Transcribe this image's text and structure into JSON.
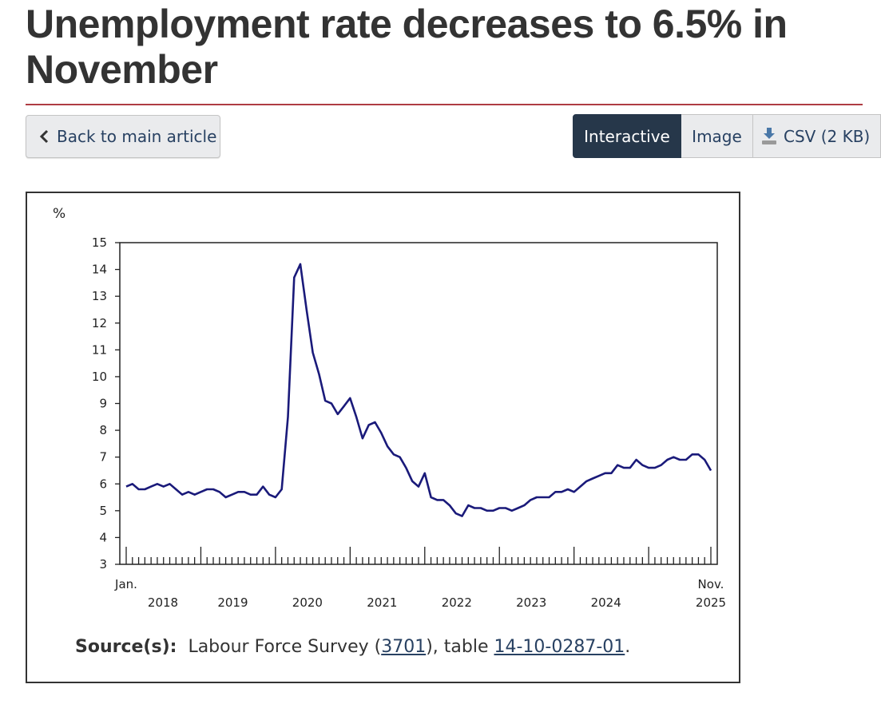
{
  "page": {
    "title": "Unemployment rate decreases to 6.5% in November"
  },
  "nav": {
    "back_label": "Back to main article",
    "view_tabs": [
      "Interactive",
      "Image",
      "CSV (2 KB)"
    ],
    "active_tab": "Interactive"
  },
  "colors": {
    "accent_rule": "#af3c43",
    "active_tab_bg": "#26374a",
    "line": "#1a1a7a",
    "link": "#284162"
  },
  "source": {
    "label": "Source(s):",
    "prefix": "Labour Force Survey (",
    "survey_link": "3701",
    "middle": "), table ",
    "table_link": "14-10-0287-01",
    "suffix": "."
  },
  "chart_data": {
    "type": "line",
    "unit_label": "%",
    "ylim": [
      3,
      15
    ],
    "y_ticks": [
      3,
      4,
      5,
      6,
      7,
      8,
      9,
      10,
      11,
      12,
      13,
      14,
      15
    ],
    "x_start": "2018-01",
    "x_end": "2025-11",
    "x_tick_labels": [
      {
        "month": "2018-01",
        "line1": "Jan.",
        "line2": "2018"
      },
      {
        "month": "2019-01",
        "line1": "",
        "line2": "2019"
      },
      {
        "month": "2020-01",
        "line1": "",
        "line2": "2020"
      },
      {
        "month": "2021-01",
        "line1": "",
        "line2": "2021"
      },
      {
        "month": "2022-01",
        "line1": "",
        "line2": "2022"
      },
      {
        "month": "2023-01",
        "line1": "",
        "line2": "2023"
      },
      {
        "month": "2024-01",
        "line1": "",
        "line2": "2024"
      },
      {
        "month": "2025-11",
        "line1": "Nov.",
        "line2": "2025"
      }
    ],
    "grid": false,
    "series": [
      {
        "values": [
          5.9,
          6.0,
          5.8,
          5.8,
          5.9,
          6.0,
          5.9,
          6.0,
          5.8,
          5.6,
          5.7,
          5.6,
          5.7,
          5.8,
          5.8,
          5.7,
          5.5,
          5.6,
          5.7,
          5.7,
          5.6,
          5.6,
          5.9,
          5.6,
          5.5,
          5.8,
          8.5,
          13.7,
          14.2,
          12.5,
          10.9,
          10.1,
          9.1,
          9.0,
          8.6,
          8.9,
          9.2,
          8.5,
          7.7,
          8.2,
          8.3,
          7.9,
          7.4,
          7.1,
          7.0,
          6.6,
          6.1,
          5.9,
          6.4,
          5.5,
          5.4,
          5.4,
          5.2,
          4.9,
          4.8,
          5.2,
          5.1,
          5.1,
          5.0,
          5.0,
          5.1,
          5.1,
          5.0,
          5.1,
          5.2,
          5.4,
          5.5,
          5.5,
          5.5,
          5.7,
          5.7,
          5.8,
          5.7,
          5.9,
          6.1,
          6.2,
          6.3,
          6.4,
          6.4,
          6.7,
          6.6,
          6.6,
          6.9,
          6.7,
          6.6,
          6.6,
          6.7,
          6.9,
          7.0,
          6.9,
          6.9,
          7.1,
          7.1,
          6.9,
          6.5
        ]
      }
    ]
  }
}
